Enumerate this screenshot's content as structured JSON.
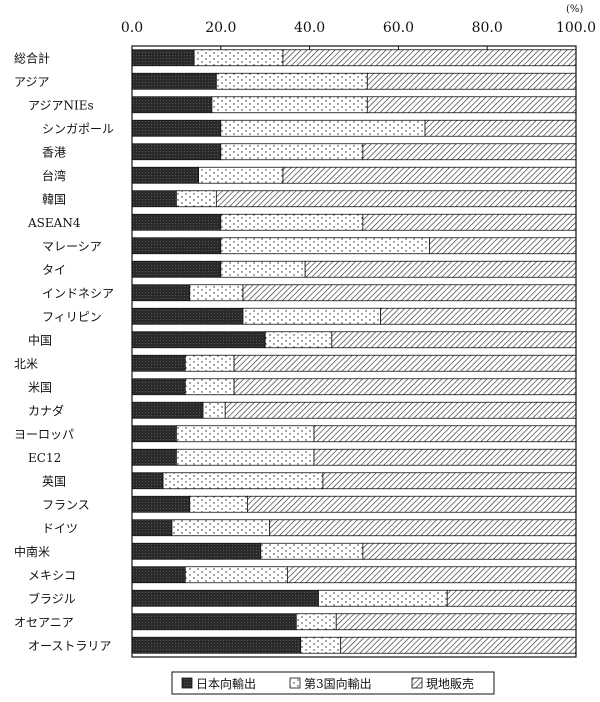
{
  "chart_data": {
    "type": "bar",
    "orientation": "horizontal",
    "stacked": true,
    "unit": "(%)",
    "xlim": [
      0,
      100
    ],
    "x_ticks": [
      "0.0",
      "20.0",
      "40.0",
      "60.0",
      "80.0",
      "100.0"
    ],
    "grid": false,
    "legend_position": "bottom",
    "categories": [
      "総合計",
      "アジア",
      "アジアNIEs",
      "シンガポール",
      "香港",
      "台湾",
      "韓国",
      "ASEAN4",
      "マレーシア",
      "タイ",
      "インドネシア",
      "フィリピン",
      "中国",
      "北米",
      "米国",
      "カナダ",
      "ヨーロッパ",
      "EC12",
      "英国",
      "フランス",
      "ドイツ",
      "中南米",
      "メキシコ",
      "ブラジル",
      "オセアニア",
      "オーストラリア"
    ],
    "category_indent": [
      0,
      0,
      1,
      2,
      2,
      2,
      2,
      1,
      2,
      2,
      2,
      2,
      1,
      0,
      1,
      1,
      0,
      1,
      2,
      2,
      2,
      0,
      1,
      1,
      0,
      1
    ],
    "series": [
      {
        "name": "日本向輸出",
        "pattern": "dark",
        "values": [
          14,
          19,
          18,
          20,
          20,
          15,
          10,
          20,
          20,
          20,
          13,
          25,
          30,
          12,
          12,
          16,
          10,
          10,
          7,
          13,
          9,
          29,
          12,
          42,
          37,
          38
        ]
      },
      {
        "name": "第3国向輸出",
        "pattern": "dots",
        "values": [
          20,
          34,
          35,
          46,
          32,
          19,
          9,
          32,
          47,
          19,
          12,
          31,
          15,
          11,
          11,
          5,
          31,
          31,
          36,
          13,
          22,
          23,
          23,
          29,
          9,
          9
        ]
      },
      {
        "name": "現地販売",
        "pattern": "hatch",
        "values": [
          66,
          47,
          47,
          34,
          48,
          66,
          81,
          48,
          33,
          61,
          75,
          44,
          55,
          77,
          77,
          79,
          59,
          59,
          57,
          74,
          69,
          48,
          65,
          29,
          54,
          53
        ]
      }
    ]
  }
}
